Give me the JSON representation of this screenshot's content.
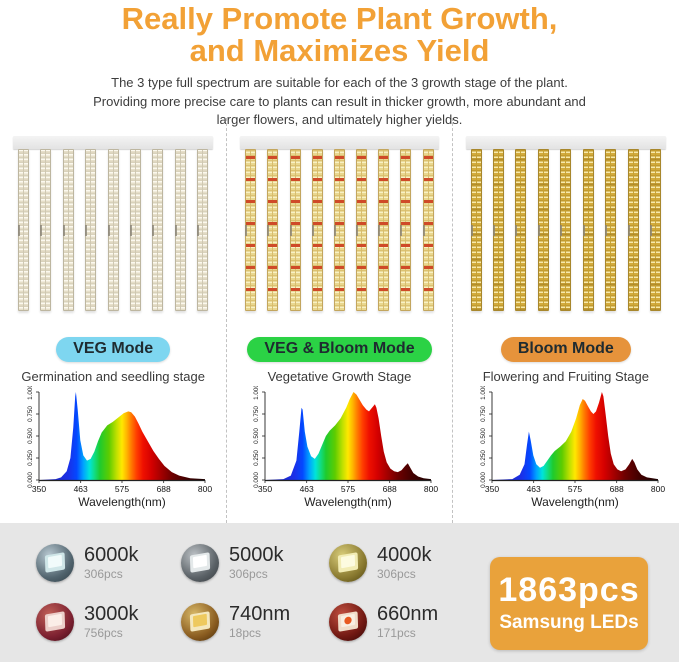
{
  "header": {
    "title_line1": "Really Promote Plant Growth,",
    "title_line2": "and Maximizes Yield",
    "title_color": "#f2a136",
    "subtitle_lines": [
      "The 3 type full spectrum are suitable for each of the 3 growth stage of the plant.",
      "Providing more precise care to plants can result in thicker growth, more abundant and",
      "larger flowers, and ultimately higher yields."
    ]
  },
  "modes": [
    {
      "label": "VEG Mode",
      "pill_color": "#7ed6f0",
      "stage": "Germination and seedling stage",
      "panel_icon": "led-panel-cool-white-bars"
    },
    {
      "label": "VEG & Bloom Mode",
      "pill_color": "#2bd245",
      "stage": "Vegetative Growth Stage",
      "panel_icon": "led-panel-mixed-red-bars"
    },
    {
      "label": "Bloom Mode",
      "pill_color": "#e6933b",
      "stage": "Flowering and Fruiting Stage",
      "panel_icon": "led-panel-warm-gold-bars"
    }
  ],
  "chart_data": [
    {
      "type": "area",
      "title": "VEG Mode spectrum",
      "xlabel": "Wavelength(nm)",
      "xlim": [
        350,
        800
      ],
      "ylim": [
        0,
        1
      ],
      "grid": false,
      "legend": "none",
      "xticks": [
        350,
        463,
        575,
        688,
        800
      ],
      "yticks": [
        {
          "v": 0,
          "label": "0.000"
        },
        {
          "v": 0.25,
          "label": "0.250"
        },
        {
          "v": 0.5,
          "label": "0.500"
        },
        {
          "v": 0.75,
          "label": "0.750"
        },
        {
          "v": 1,
          "label": "1.000"
        }
      ],
      "points": [
        [
          350,
          0
        ],
        [
          395,
          0.01
        ],
        [
          410,
          0.03
        ],
        [
          425,
          0.1
        ],
        [
          435,
          0.25
        ],
        [
          443,
          0.6
        ],
        [
          448,
          0.95
        ],
        [
          450,
          1.0
        ],
        [
          455,
          0.8
        ],
        [
          462,
          0.45
        ],
        [
          470,
          0.28
        ],
        [
          480,
          0.22
        ],
        [
          490,
          0.24
        ],
        [
          500,
          0.32
        ],
        [
          510,
          0.44
        ],
        [
          520,
          0.54
        ],
        [
          535,
          0.62
        ],
        [
          550,
          0.66
        ],
        [
          565,
          0.71
        ],
        [
          580,
          0.76
        ],
        [
          592,
          0.78
        ],
        [
          600,
          0.77
        ],
        [
          610,
          0.72
        ],
        [
          620,
          0.64
        ],
        [
          630,
          0.55
        ],
        [
          645,
          0.44
        ],
        [
          660,
          0.33
        ],
        [
          675,
          0.24
        ],
        [
          690,
          0.16
        ],
        [
          710,
          0.09
        ],
        [
          730,
          0.05
        ],
        [
          760,
          0.02
        ],
        [
          800,
          0.01
        ]
      ]
    },
    {
      "type": "area",
      "title": "VEG & Bloom Mode spectrum",
      "xlabel": "Wavelength(nm)",
      "xlim": [
        350,
        800
      ],
      "ylim": [
        0,
        1
      ],
      "grid": false,
      "legend": "none",
      "xticks": [
        350,
        463,
        575,
        688,
        800
      ],
      "yticks": [
        {
          "v": 0,
          "label": "0.000"
        },
        {
          "v": 0.25,
          "label": "0.250"
        },
        {
          "v": 0.5,
          "label": "0.500"
        },
        {
          "v": 0.75,
          "label": "0.750"
        },
        {
          "v": 1,
          "label": "1.000"
        }
      ],
      "points": [
        [
          350,
          0
        ],
        [
          400,
          0.01
        ],
        [
          420,
          0.05
        ],
        [
          435,
          0.22
        ],
        [
          443,
          0.55
        ],
        [
          449,
          0.82
        ],
        [
          452,
          0.8
        ],
        [
          458,
          0.55
        ],
        [
          465,
          0.38
        ],
        [
          475,
          0.27
        ],
        [
          485,
          0.24
        ],
        [
          495,
          0.3
        ],
        [
          505,
          0.4
        ],
        [
          515,
          0.5
        ],
        [
          525,
          0.56
        ],
        [
          540,
          0.62
        ],
        [
          555,
          0.7
        ],
        [
          570,
          0.82
        ],
        [
          580,
          0.92
        ],
        [
          590,
          1.0
        ],
        [
          598,
          0.97
        ],
        [
          605,
          0.92
        ],
        [
          615,
          0.85
        ],
        [
          625,
          0.8
        ],
        [
          632,
          0.78
        ],
        [
          640,
          0.82
        ],
        [
          648,
          0.86
        ],
        [
          652,
          0.82
        ],
        [
          658,
          0.7
        ],
        [
          665,
          0.5
        ],
        [
          672,
          0.32
        ],
        [
          680,
          0.2
        ],
        [
          690,
          0.13
        ],
        [
          700,
          0.1
        ],
        [
          710,
          0.09
        ],
        [
          720,
          0.11
        ],
        [
          730,
          0.16
        ],
        [
          737,
          0.19
        ],
        [
          744,
          0.14
        ],
        [
          752,
          0.08
        ],
        [
          765,
          0.04
        ],
        [
          780,
          0.02
        ],
        [
          800,
          0.01
        ]
      ]
    },
    {
      "type": "area",
      "title": "Bloom Mode spectrum",
      "xlabel": "Wavelength(nm)",
      "xlim": [
        350,
        800
      ],
      "ylim": [
        0,
        1
      ],
      "grid": false,
      "legend": "none",
      "xticks": [
        350,
        463,
        575,
        688,
        800
      ],
      "yticks": [
        {
          "v": 0,
          "label": "0.000"
        },
        {
          "v": 0.25,
          "label": "0.250"
        },
        {
          "v": 0.5,
          "label": "0.500"
        },
        {
          "v": 0.75,
          "label": "0.750"
        },
        {
          "v": 1,
          "label": "1.000"
        }
      ],
      "points": [
        [
          350,
          0
        ],
        [
          405,
          0.01
        ],
        [
          425,
          0.06
        ],
        [
          438,
          0.18
        ],
        [
          445,
          0.4
        ],
        [
          450,
          0.55
        ],
        [
          455,
          0.45
        ],
        [
          462,
          0.28
        ],
        [
          470,
          0.18
        ],
        [
          480,
          0.14
        ],
        [
          490,
          0.16
        ],
        [
          500,
          0.22
        ],
        [
          510,
          0.28
        ],
        [
          520,
          0.33
        ],
        [
          535,
          0.38
        ],
        [
          550,
          0.44
        ],
        [
          565,
          0.55
        ],
        [
          578,
          0.7
        ],
        [
          588,
          0.85
        ],
        [
          596,
          0.92
        ],
        [
          602,
          0.9
        ],
        [
          610,
          0.84
        ],
        [
          618,
          0.78
        ],
        [
          625,
          0.75
        ],
        [
          632,
          0.78
        ],
        [
          640,
          0.88
        ],
        [
          648,
          1.0
        ],
        [
          652,
          0.95
        ],
        [
          658,
          0.75
        ],
        [
          665,
          0.5
        ],
        [
          672,
          0.3
        ],
        [
          680,
          0.18
        ],
        [
          690,
          0.12
        ],
        [
          700,
          0.1
        ],
        [
          712,
          0.12
        ],
        [
          722,
          0.18
        ],
        [
          730,
          0.24
        ],
        [
          736,
          0.2
        ],
        [
          744,
          0.12
        ],
        [
          755,
          0.06
        ],
        [
          770,
          0.03
        ],
        [
          800,
          0.01
        ]
      ]
    }
  ],
  "spectrum_gradient": [
    [
      350,
      "#2222a8"
    ],
    [
      430,
      "#1a30e8"
    ],
    [
      452,
      "#0448ff"
    ],
    [
      470,
      "#00a2ff"
    ],
    [
      487,
      "#00e4da"
    ],
    [
      500,
      "#10dd88"
    ],
    [
      515,
      "#1ecb2e"
    ],
    [
      540,
      "#5ecc00"
    ],
    [
      560,
      "#bfe000"
    ],
    [
      575,
      "#ffe800"
    ],
    [
      588,
      "#ffb400"
    ],
    [
      600,
      "#ff7a00"
    ],
    [
      615,
      "#ff3c00"
    ],
    [
      632,
      "#ef1000"
    ],
    [
      655,
      "#d40000"
    ],
    [
      680,
      "#a60000"
    ],
    [
      710,
      "#6e0000"
    ],
    [
      745,
      "#460000"
    ],
    [
      800,
      "#1c0000"
    ]
  ],
  "leds": {
    "items": [
      {
        "label": "6000k",
        "count": "306pcs",
        "icon": "led-chip-cool-white-icon"
      },
      {
        "label": "5000k",
        "count": "306pcs",
        "icon": "led-chip-white-icon"
      },
      {
        "label": "4000k",
        "count": "306pcs",
        "icon": "led-chip-neutral-white-icon"
      },
      {
        "label": "3000k",
        "count": "756pcs",
        "icon": "led-chip-warm-red-icon"
      },
      {
        "label": "740nm",
        "count": "18pcs",
        "icon": "led-chip-far-red-icon"
      },
      {
        "label": "660nm",
        "count": "171pcs",
        "icon": "led-chip-deep-red-icon"
      }
    ],
    "badge": {
      "line1": "1863pcs",
      "line2": "Samsung LEDs",
      "color": "#e9a23b"
    }
  }
}
